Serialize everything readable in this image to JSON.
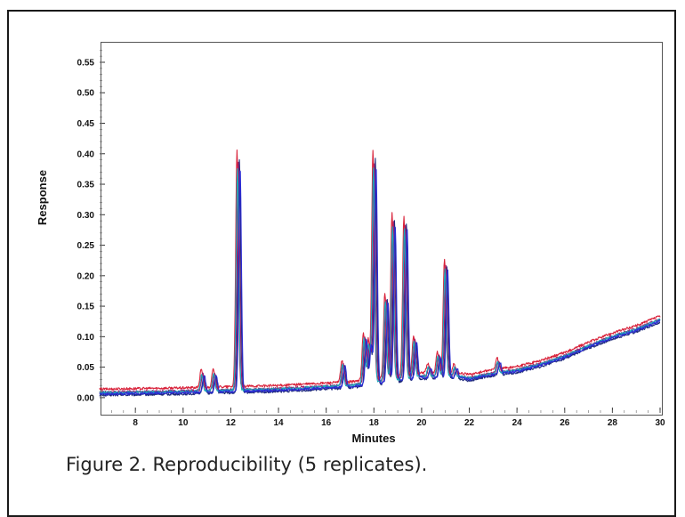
{
  "figure": {
    "caption": "Figure 2. Reproducibility (5 replicates)."
  },
  "chart_data": {
    "type": "line",
    "xlabel": "Minutes",
    "ylabel": "Response",
    "xlim": [
      6.5,
      30
    ],
    "ylim": [
      -0.025,
      0.585
    ],
    "x_ticks": [
      8,
      10,
      12,
      14,
      16,
      18,
      20,
      22,
      24,
      26,
      28,
      30
    ],
    "y_ticks": [
      0.0,
      0.05,
      0.1,
      0.15,
      0.2,
      0.25,
      0.3,
      0.35,
      0.4,
      0.45,
      0.5,
      0.55
    ],
    "y_tick_labels": [
      "0.00",
      "0.05",
      "0.10",
      "0.15",
      "0.20",
      "0.25",
      "0.30",
      "0.35",
      "0.40",
      "0.45",
      "0.50",
      "0.55"
    ],
    "x_tick_labels": [
      "8",
      "10",
      "12",
      "14",
      "16",
      "18",
      "20",
      "22",
      "24",
      "26",
      "28",
      "30"
    ],
    "grid": false,
    "baseline": {
      "x": [
        6.5,
        10.0,
        12.0,
        14.0,
        16.0,
        17.0,
        18.0,
        20.0,
        21.5,
        22.0,
        23.0,
        24.0,
        25.0,
        26.0,
        27.0,
        28.0,
        29.0,
        30.0
      ],
      "y": [
        0.008,
        0.01,
        0.012,
        0.014,
        0.018,
        0.02,
        0.025,
        0.035,
        0.035,
        0.032,
        0.04,
        0.045,
        0.055,
        0.068,
        0.085,
        0.1,
        0.112,
        0.128
      ]
    },
    "peaks": [
      {
        "rt": 10.8,
        "height": 0.04
      },
      {
        "rt": 11.3,
        "height": 0.04
      },
      {
        "rt": 12.3,
        "height": 0.395
      },
      {
        "rt": 16.7,
        "height": 0.055
      },
      {
        "rt": 17.6,
        "height": 0.1
      },
      {
        "rt": 17.8,
        "height": 0.09
      },
      {
        "rt": 18.0,
        "height": 0.395
      },
      {
        "rt": 18.5,
        "height": 0.165
      },
      {
        "rt": 18.8,
        "height": 0.295
      },
      {
        "rt": 19.3,
        "height": 0.29
      },
      {
        "rt": 19.7,
        "height": 0.095
      },
      {
        "rt": 20.3,
        "height": 0.05
      },
      {
        "rt": 20.7,
        "height": 0.07
      },
      {
        "rt": 21.0,
        "height": 0.22
      },
      {
        "rt": 21.4,
        "height": 0.05
      },
      {
        "rt": 23.2,
        "height": 0.06
      }
    ],
    "series": [
      {
        "color": "#1f2a7a",
        "rt_shift": 0.06,
        "scale": 1.0,
        "base_offset": -0.004
      },
      {
        "color": "#d9233b",
        "rt_shift": -0.04,
        "scale": 1.01,
        "base_offset": 0.006
      },
      {
        "color": "#9a1f6e",
        "rt_shift": 0.02,
        "scale": 0.97,
        "base_offset": 0.001
      },
      {
        "color": "#1aa6b8",
        "rt_shift": -0.02,
        "scale": 0.95,
        "base_offset": 0.0
      },
      {
        "color": "#2b2bd4",
        "rt_shift": 0.09,
        "scale": 0.96,
        "base_offset": -0.002
      }
    ]
  }
}
